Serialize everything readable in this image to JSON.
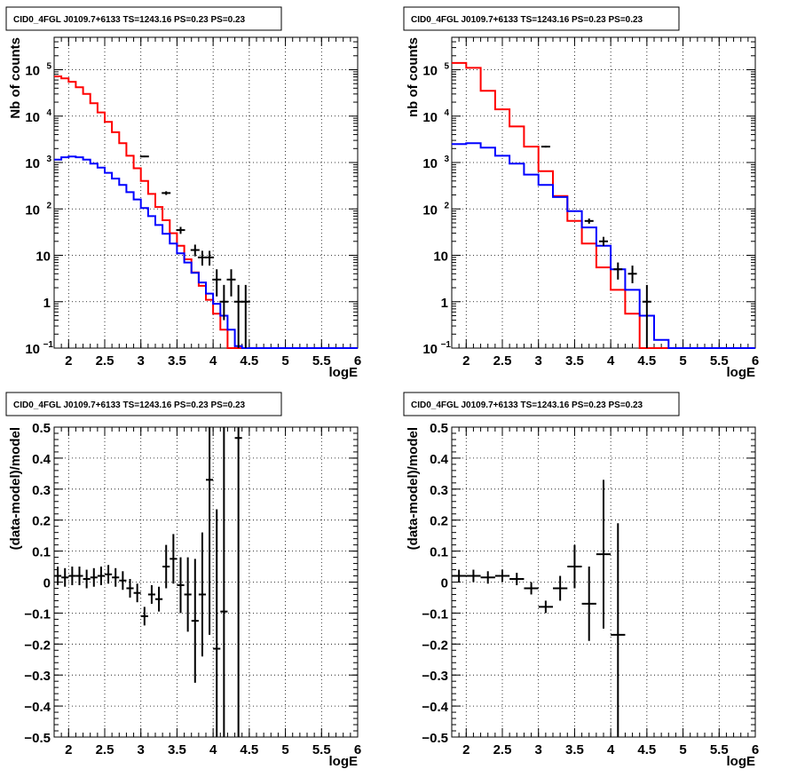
{
  "chart_data": [
    {
      "type": "step",
      "title": "CID0_4FGL J0109.7+6133 TS=1243.16 PS=0.23 PS=0.23",
      "xlabel": "logE",
      "ylabel": "Nb of counts",
      "yscale": "log",
      "xlim": [
        1.8,
        6
      ],
      "ylim": [
        0.1,
        500000
      ],
      "grid": true,
      "x_ticks": [
        "2",
        "2.5",
        "3",
        "3.5",
        "4",
        "4.5",
        "5",
        "5.5",
        "6"
      ],
      "y_ticks": [
        {
          "v": 0.1,
          "label": "10",
          "sup": "−1"
        },
        {
          "v": 1,
          "label": "1",
          "sup": ""
        },
        {
          "v": 10,
          "label": "10",
          "sup": ""
        },
        {
          "v": 100,
          "label": "10",
          "sup": "2"
        },
        {
          "v": 1000,
          "label": "10",
          "sup": "3"
        },
        {
          "v": 10000,
          "label": "10",
          "sup": "4"
        },
        {
          "v": 100000,
          "label": "10",
          "sup": "5"
        }
      ],
      "bin_edges": [
        1.8,
        1.9,
        2.0,
        2.1,
        2.2,
        2.3,
        2.4,
        2.5,
        2.6,
        2.7,
        2.8,
        2.9,
        3.0,
        3.1,
        3.2,
        3.3,
        3.4,
        3.5,
        3.6,
        3.7,
        3.8,
        3.9,
        4.0,
        4.1,
        4.2,
        4.3,
        4.4,
        4.5,
        4.6,
        4.7,
        4.8,
        4.9,
        5.0,
        5.1,
        5.2,
        5.3,
        5.4,
        5.5,
        5.6,
        5.7,
        5.8,
        5.9,
        6.0
      ],
      "series": [
        {
          "color": "#ff0000",
          "values": [
            72000,
            65000,
            55000,
            42000,
            30000,
            19000,
            12000,
            7500,
            4500,
            2600,
            1400,
            750,
            400,
            210,
            110,
            57,
            30,
            16,
            8.2,
            4.3,
            2.2,
            1.1,
            0.55,
            0.25,
            0.1,
            0.1,
            0.1,
            0.1,
            0.1,
            0.1,
            0.1,
            0.1,
            0.1,
            0.1,
            0.1,
            0.1,
            0.1,
            0.1,
            0.1,
            0.1,
            0.1,
            0.1
          ]
        },
        {
          "color": "#0000ff",
          "values": [
            1150,
            1300,
            1350,
            1300,
            1150,
            950,
            780,
            600,
            450,
            330,
            230,
            160,
            105,
            70,
            45,
            29,
            18,
            11,
            7,
            4.2,
            2.6,
            1.5,
            0.9,
            0.5,
            0.25,
            0.11,
            0.1,
            0.1,
            0.1,
            0.1,
            0.1,
            0.1,
            0.1,
            0.1,
            0.1,
            0.1,
            0.1,
            0.1,
            0.1,
            0.1,
            0.1,
            0.1
          ]
        }
      ],
      "data_points": [
        {
          "x": 3.05,
          "y": 1350,
          "ylo": 1300,
          "yhi": 1400
        },
        {
          "x": 3.35,
          "y": 220,
          "ylo": 200,
          "yhi": 240
        },
        {
          "x": 3.55,
          "y": 35,
          "ylo": 29,
          "yhi": 41
        },
        {
          "x": 3.75,
          "y": 13,
          "ylo": 9.5,
          "yhi": 17
        },
        {
          "x": 3.85,
          "y": 9,
          "ylo": 6,
          "yhi": 12.5
        },
        {
          "x": 3.95,
          "y": 9,
          "ylo": 6,
          "yhi": 12.5
        },
        {
          "x": 4.05,
          "y": 3,
          "ylo": 1.3,
          "yhi": 5
        },
        {
          "x": 4.15,
          "y": 1,
          "ylo": 0.4,
          "yhi": 2.3
        },
        {
          "x": 4.25,
          "y": 3,
          "ylo": 1.3,
          "yhi": 5
        },
        {
          "x": 4.35,
          "y": 1,
          "ylo": 0.1,
          "yhi": 2.3
        },
        {
          "x": 4.45,
          "y": 1,
          "ylo": 0.1,
          "yhi": 2.3
        }
      ]
    },
    {
      "type": "step",
      "title": "CID0_4FGL J0109.7+6133 TS=1243.16 PS=0.23 PS=0.23",
      "xlabel": "logE",
      "ylabel": "nb of counts",
      "yscale": "log",
      "xlim": [
        1.8,
        6
      ],
      "ylim": [
        0.1,
        500000
      ],
      "grid": true,
      "x_ticks": [
        "2",
        "2.5",
        "3",
        "3.5",
        "4",
        "4.5",
        "5",
        "5.5",
        "6"
      ],
      "y_ticks": [
        {
          "v": 0.1,
          "label": "10",
          "sup": "−1"
        },
        {
          "v": 1,
          "label": "1",
          "sup": ""
        },
        {
          "v": 10,
          "label": "10",
          "sup": ""
        },
        {
          "v": 100,
          "label": "10",
          "sup": "2"
        },
        {
          "v": 1000,
          "label": "10",
          "sup": "3"
        },
        {
          "v": 10000,
          "label": "10",
          "sup": "4"
        },
        {
          "v": 100000,
          "label": "10",
          "sup": "5"
        }
      ],
      "bin_edges": [
        1.8,
        2.0,
        2.2,
        2.4,
        2.6,
        2.8,
        3.0,
        3.2,
        3.4,
        3.6,
        3.8,
        4.0,
        4.2,
        4.4,
        4.6,
        4.8,
        5.0,
        5.2,
        5.4,
        5.6,
        5.8,
        6.0
      ],
      "series": [
        {
          "color": "#ff0000",
          "values": [
            140000,
            110000,
            35000,
            14000,
            6000,
            2200,
            650,
            190,
            55,
            18,
            5.5,
            1.8,
            0.55,
            0.1,
            0.1,
            0.1,
            0.1,
            0.1,
            0.1,
            0.1,
            0.1
          ]
        },
        {
          "color": "#0000ff",
          "values": [
            2500,
            2600,
            2100,
            1400,
            950,
            550,
            330,
            180,
            90,
            40,
            16,
            5,
            1.8,
            0.5,
            0.15,
            0.1,
            0.1,
            0.1,
            0.1,
            0.1,
            0.1
          ]
        }
      ],
      "data_points": [
        {
          "x": 3.1,
          "y": 2200,
          "ylo": 2100,
          "yhi": 2300
        },
        {
          "x": 3.7,
          "y": 55,
          "ylo": 48,
          "yhi": 62
        },
        {
          "x": 3.9,
          "y": 20,
          "ylo": 16,
          "yhi": 25
        },
        {
          "x": 4.1,
          "y": 5,
          "ylo": 3,
          "yhi": 7
        },
        {
          "x": 4.3,
          "y": 4,
          "ylo": 2.5,
          "yhi": 6
        },
        {
          "x": 4.5,
          "y": 1,
          "ylo": 0.1,
          "yhi": 2.3
        }
      ]
    },
    {
      "type": "errorbar",
      "title": "CID0_4FGL J0109.7+6133 TS=1243.16 PS=0.23 PS=0.23",
      "xlabel": "logE",
      "ylabel": "(data-model)/model",
      "yscale": "linear",
      "xlim": [
        1.8,
        6
      ],
      "ylim": [
        -0.5,
        0.5
      ],
      "grid": true,
      "x_ticks": [
        "2",
        "2.5",
        "3",
        "3.5",
        "4",
        "4.5",
        "5",
        "5.5",
        "6"
      ],
      "y_ticks": [
        "−0.5",
        "−0.4",
        "−0.3",
        "−0.2",
        "−0.1",
        "0",
        "0.1",
        "0.2",
        "0.3",
        "0.4",
        "0.5"
      ],
      "y_tick_values": [
        -0.5,
        -0.4,
        -0.3,
        -0.2,
        -0.1,
        0,
        0.1,
        0.2,
        0.3,
        0.4,
        0.5
      ],
      "xerr": 0.05,
      "points": [
        {
          "x": 1.85,
          "y": 0.02,
          "e": 0.03
        },
        {
          "x": 1.95,
          "y": 0.015,
          "e": 0.03
        },
        {
          "x": 2.05,
          "y": 0.02,
          "e": 0.03
        },
        {
          "x": 2.15,
          "y": 0.02,
          "e": 0.03
        },
        {
          "x": 2.25,
          "y": 0.01,
          "e": 0.03
        },
        {
          "x": 2.35,
          "y": 0.015,
          "e": 0.03
        },
        {
          "x": 2.45,
          "y": 0.02,
          "e": 0.03
        },
        {
          "x": 2.55,
          "y": 0.025,
          "e": 0.03
        },
        {
          "x": 2.65,
          "y": 0.015,
          "e": 0.03
        },
        {
          "x": 2.75,
          "y": 0.005,
          "e": 0.03
        },
        {
          "x": 2.85,
          "y": -0.02,
          "e": 0.03
        },
        {
          "x": 2.95,
          "y": -0.035,
          "e": 0.03
        },
        {
          "x": 3.05,
          "y": -0.11,
          "e": 0.03
        },
        {
          "x": 3.15,
          "y": -0.04,
          "e": 0.03
        },
        {
          "x": 3.25,
          "y": -0.055,
          "e": 0.04
        },
        {
          "x": 3.35,
          "y": 0.05,
          "e": 0.07
        },
        {
          "x": 3.45,
          "y": 0.075,
          "e": 0.08
        },
        {
          "x": 3.55,
          "y": -0.01,
          "e": 0.09
        },
        {
          "x": 3.65,
          "y": -0.04,
          "e": 0.12
        },
        {
          "x": 3.75,
          "y": -0.125,
          "e": 0.2
        },
        {
          "x": 3.85,
          "y": -0.04,
          "e": 0.2
        },
        {
          "x": 3.95,
          "y": 0.33,
          "e": 0.5
        },
        {
          "x": 4.05,
          "y": -0.215,
          "e": 0.45
        },
        {
          "x": 4.15,
          "y": -0.095,
          "e": 0.6
        },
        {
          "x": 4.35,
          "y": 0.465,
          "e": 1.0
        }
      ]
    },
    {
      "type": "errorbar",
      "title": "CID0_4FGL J0109.7+6133 TS=1243.16 PS=0.23 PS=0.23",
      "xlabel": "logE",
      "ylabel": "(data-model)/model",
      "yscale": "linear",
      "xlim": [
        1.8,
        6
      ],
      "ylim": [
        -0.5,
        0.5
      ],
      "grid": true,
      "x_ticks": [
        "2",
        "2.5",
        "3",
        "3.5",
        "4",
        "4.5",
        "5",
        "5.5",
        "6"
      ],
      "y_ticks": [
        "−0.5",
        "−0.4",
        "−0.3",
        "−0.2",
        "−0.1",
        "0",
        "0.1",
        "0.2",
        "0.3",
        "0.4",
        "0.5"
      ],
      "y_tick_values": [
        -0.5,
        -0.4,
        -0.3,
        -0.2,
        -0.1,
        0,
        0.1,
        0.2,
        0.3,
        0.4,
        0.5
      ],
      "xerr": 0.1,
      "points": [
        {
          "x": 1.9,
          "y": 0.02,
          "e": 0.02
        },
        {
          "x": 2.1,
          "y": 0.02,
          "e": 0.02
        },
        {
          "x": 2.3,
          "y": 0.015,
          "e": 0.02
        },
        {
          "x": 2.5,
          "y": 0.02,
          "e": 0.02
        },
        {
          "x": 2.7,
          "y": 0.01,
          "e": 0.02
        },
        {
          "x": 2.9,
          "y": -0.02,
          "e": 0.02
        },
        {
          "x": 3.1,
          "y": -0.08,
          "e": 0.02
        },
        {
          "x": 3.3,
          "y": -0.02,
          "e": 0.04
        },
        {
          "x": 3.5,
          "y": 0.05,
          "e": 0.07
        },
        {
          "x": 3.7,
          "y": -0.07,
          "e": 0.12
        },
        {
          "x": 3.9,
          "y": 0.09,
          "e": 0.24
        },
        {
          "x": 4.1,
          "y": -0.17,
          "e": 0.36
        }
      ]
    }
  ]
}
